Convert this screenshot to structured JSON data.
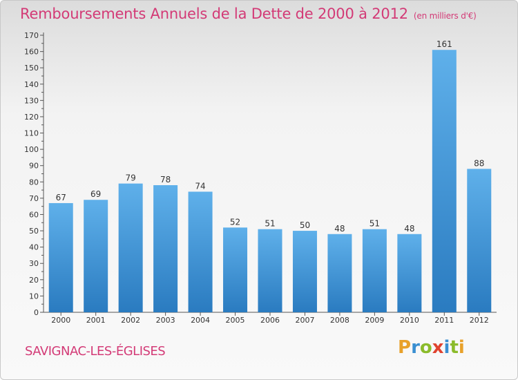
{
  "header": {
    "title": "Remboursements Annuels de la Dette de 2000 à 2012",
    "unit": "(en milliers d'€)"
  },
  "footer": {
    "commune": "SAVIGNAC-LES-ÉGLISES",
    "logo_letters": [
      "P",
      "r",
      "o",
      "x",
      "i",
      "t",
      "i"
    ],
    "logo_colors": [
      "#e8a12a",
      "#3a8fd1",
      "#8bbb2b",
      "#e0432f",
      "#3a8fd1",
      "#8bbb2b",
      "#e8a12a"
    ]
  },
  "chart_data": {
    "type": "bar",
    "categories": [
      "2000",
      "2001",
      "2002",
      "2003",
      "2004",
      "2005",
      "2006",
      "2007",
      "2008",
      "2009",
      "2010",
      "2011",
      "2012"
    ],
    "values": [
      67,
      69,
      79,
      78,
      74,
      52,
      51,
      50,
      48,
      51,
      48,
      161,
      88
    ],
    "ylim": [
      0,
      170
    ],
    "yticks": [
      0,
      10,
      20,
      30,
      40,
      50,
      60,
      70,
      80,
      90,
      100,
      110,
      120,
      130,
      140,
      150,
      160,
      170
    ],
    "grid": false,
    "bar_color_top": "#5fb0ea",
    "bar_color_bottom": "#2a7bc0",
    "data_labels": true
  }
}
